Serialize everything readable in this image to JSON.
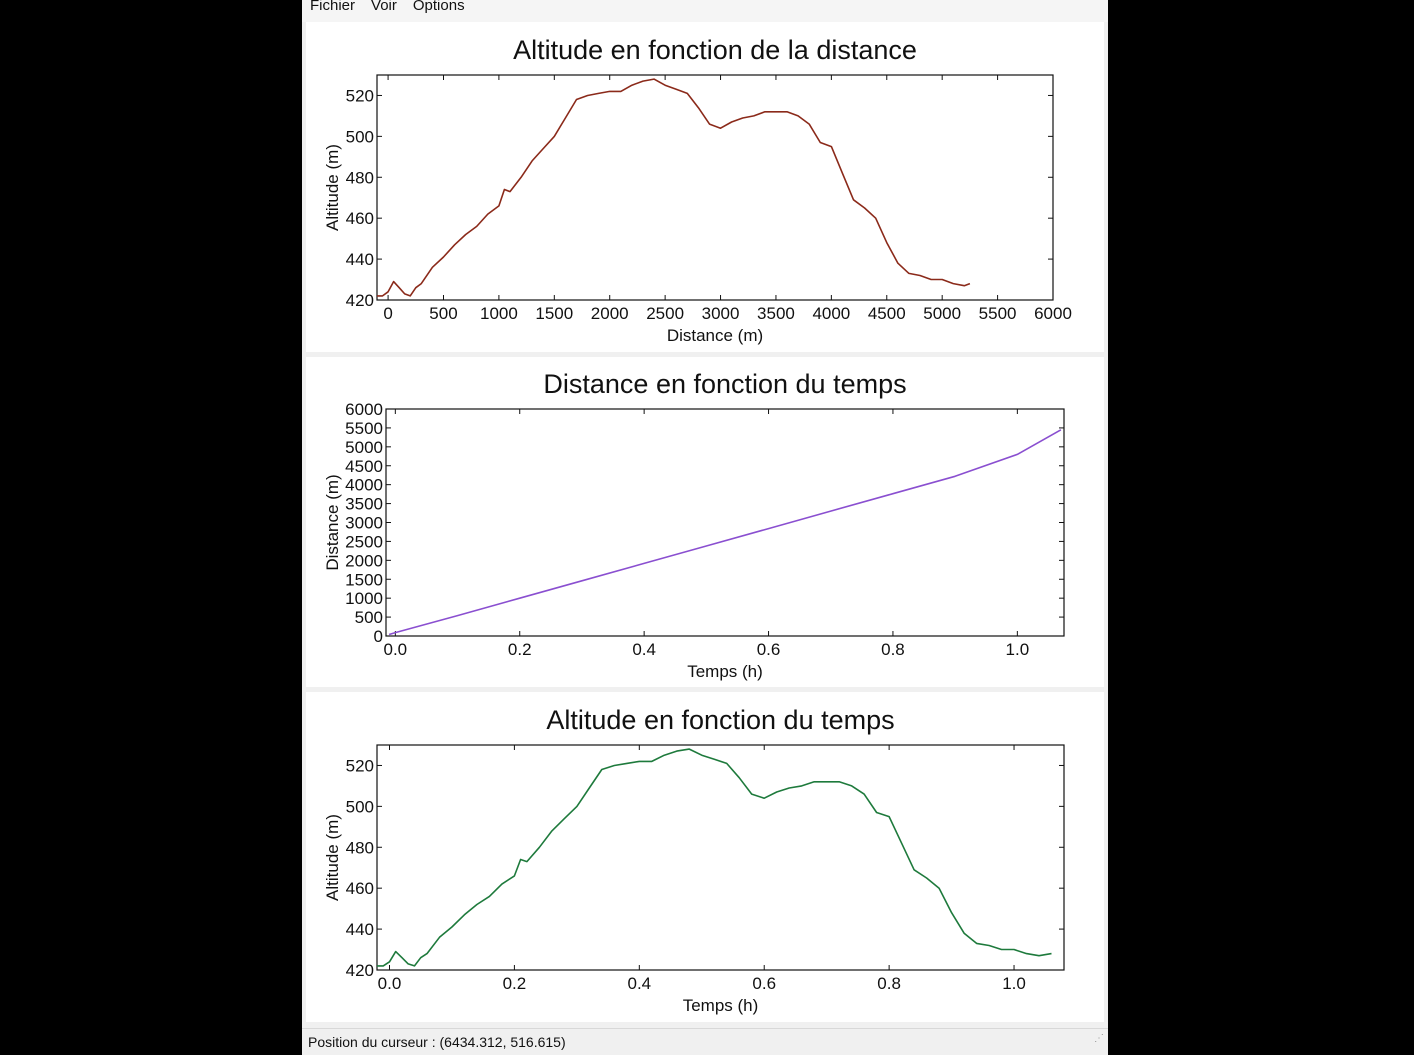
{
  "menu": {
    "items": [
      "Fichier",
      "Voir",
      "Options"
    ]
  },
  "status": {
    "text": "Position du curseur : (6434.312, 516.615)"
  },
  "chart_data": [
    {
      "type": "line",
      "title": "Altitude en fonction de la distance",
      "xlabel": "Distance (m)",
      "ylabel": "Altitude (m)",
      "xlim": [
        -100,
        6000
      ],
      "ylim": [
        420,
        530
      ],
      "xticks": [
        0,
        500,
        1000,
        1500,
        2000,
        2500,
        3000,
        3500,
        4000,
        4500,
        5000,
        5500,
        6000
      ],
      "yticks": [
        420,
        440,
        460,
        480,
        500,
        520
      ],
      "xtick_decimals": 0,
      "grid": false,
      "color": "#8b2a1a",
      "series": [
        {
          "x": [
            -100,
            -50,
            0,
            50,
            100,
            150,
            200,
            250,
            300,
            400,
            500,
            600,
            700,
            800,
            900,
            1000,
            1050,
            1100,
            1200,
            1300,
            1400,
            1500,
            1600,
            1700,
            1800,
            1900,
            2000,
            2100,
            2200,
            2300,
            2400,
            2500,
            2600,
            2700,
            2800,
            2900,
            3000,
            3100,
            3200,
            3300,
            3400,
            3500,
            3600,
            3700,
            3800,
            3900,
            4000,
            4100,
            4200,
            4300,
            4400,
            4500,
            4600,
            4700,
            4800,
            4900,
            5000,
            5100,
            5200,
            5250
          ],
          "y": [
            422,
            422,
            424,
            429,
            426,
            423,
            422,
            426,
            428,
            436,
            441,
            447,
            452,
            456,
            462,
            466,
            474,
            473,
            480,
            488,
            494,
            500,
            509,
            518,
            520,
            521,
            522,
            522,
            525,
            527,
            528,
            525,
            523,
            521,
            514,
            506,
            504,
            507,
            509,
            510,
            512,
            512,
            512,
            510,
            506,
            497,
            495,
            482,
            469,
            465,
            460,
            448,
            438,
            433,
            432,
            430,
            430,
            428,
            427,
            428
          ]
        }
      ]
    },
    {
      "type": "line",
      "title": "Distance en fonction du temps",
      "xlabel": "Temps (h)",
      "ylabel": "Distance (m)",
      "xlim": [
        -0.015,
        1.075
      ],
      "ylim": [
        0,
        6000
      ],
      "xticks": [
        0.0,
        0.2,
        0.4,
        0.6,
        0.8,
        1.0
      ],
      "yticks": [
        0,
        500,
        1000,
        1500,
        2000,
        2500,
        3000,
        3500,
        4000,
        4500,
        5000,
        5500,
        6000
      ],
      "xtick_decimals": 1,
      "grid": false,
      "color": "#8a4fd0",
      "series": [
        {
          "x": [
            -0.01,
            0.0,
            0.1,
            0.2,
            0.3,
            0.4,
            0.5,
            0.6,
            0.7,
            0.8,
            0.9,
            1.0,
            1.07
          ],
          "y": [
            40,
            90,
            540,
            1000,
            1460,
            1920,
            2380,
            2840,
            3300,
            3760,
            4220,
            4800,
            5450
          ]
        }
      ]
    },
    {
      "type": "line",
      "title": "Altitude en fonction du temps",
      "xlabel": "Temps (h)",
      "ylabel": "Altitude (m)",
      "xlim": [
        -0.02,
        1.08
      ],
      "ylim": [
        420,
        530
      ],
      "xticks": [
        0.0,
        0.2,
        0.4,
        0.6,
        0.8,
        1.0
      ],
      "yticks": [
        420,
        440,
        460,
        480,
        500,
        520
      ],
      "xtick_decimals": 1,
      "grid": false,
      "color": "#1e7a3c",
      "series": [
        {
          "x": [
            -0.02,
            -0.01,
            0.0,
            0.01,
            0.02,
            0.03,
            0.04,
            0.05,
            0.06,
            0.08,
            0.1,
            0.12,
            0.14,
            0.16,
            0.18,
            0.2,
            0.21,
            0.22,
            0.24,
            0.26,
            0.28,
            0.3,
            0.32,
            0.34,
            0.36,
            0.38,
            0.4,
            0.42,
            0.44,
            0.46,
            0.48,
            0.5,
            0.52,
            0.54,
            0.56,
            0.58,
            0.6,
            0.62,
            0.64,
            0.66,
            0.68,
            0.7,
            0.72,
            0.74,
            0.76,
            0.78,
            0.8,
            0.82,
            0.84,
            0.86,
            0.88,
            0.9,
            0.92,
            0.94,
            0.96,
            0.98,
            1.0,
            1.02,
            1.04,
            1.06
          ],
          "y": [
            422,
            422,
            424,
            429,
            426,
            423,
            422,
            426,
            428,
            436,
            441,
            447,
            452,
            456,
            462,
            466,
            474,
            473,
            480,
            488,
            494,
            500,
            509,
            518,
            520,
            521,
            522,
            522,
            525,
            527,
            528,
            525,
            523,
            521,
            514,
            506,
            504,
            507,
            509,
            510,
            512,
            512,
            512,
            510,
            506,
            497,
            495,
            482,
            469,
            465,
            460,
            448,
            438,
            433,
            432,
            430,
            430,
            428,
            427,
            428
          ]
        }
      ]
    }
  ]
}
